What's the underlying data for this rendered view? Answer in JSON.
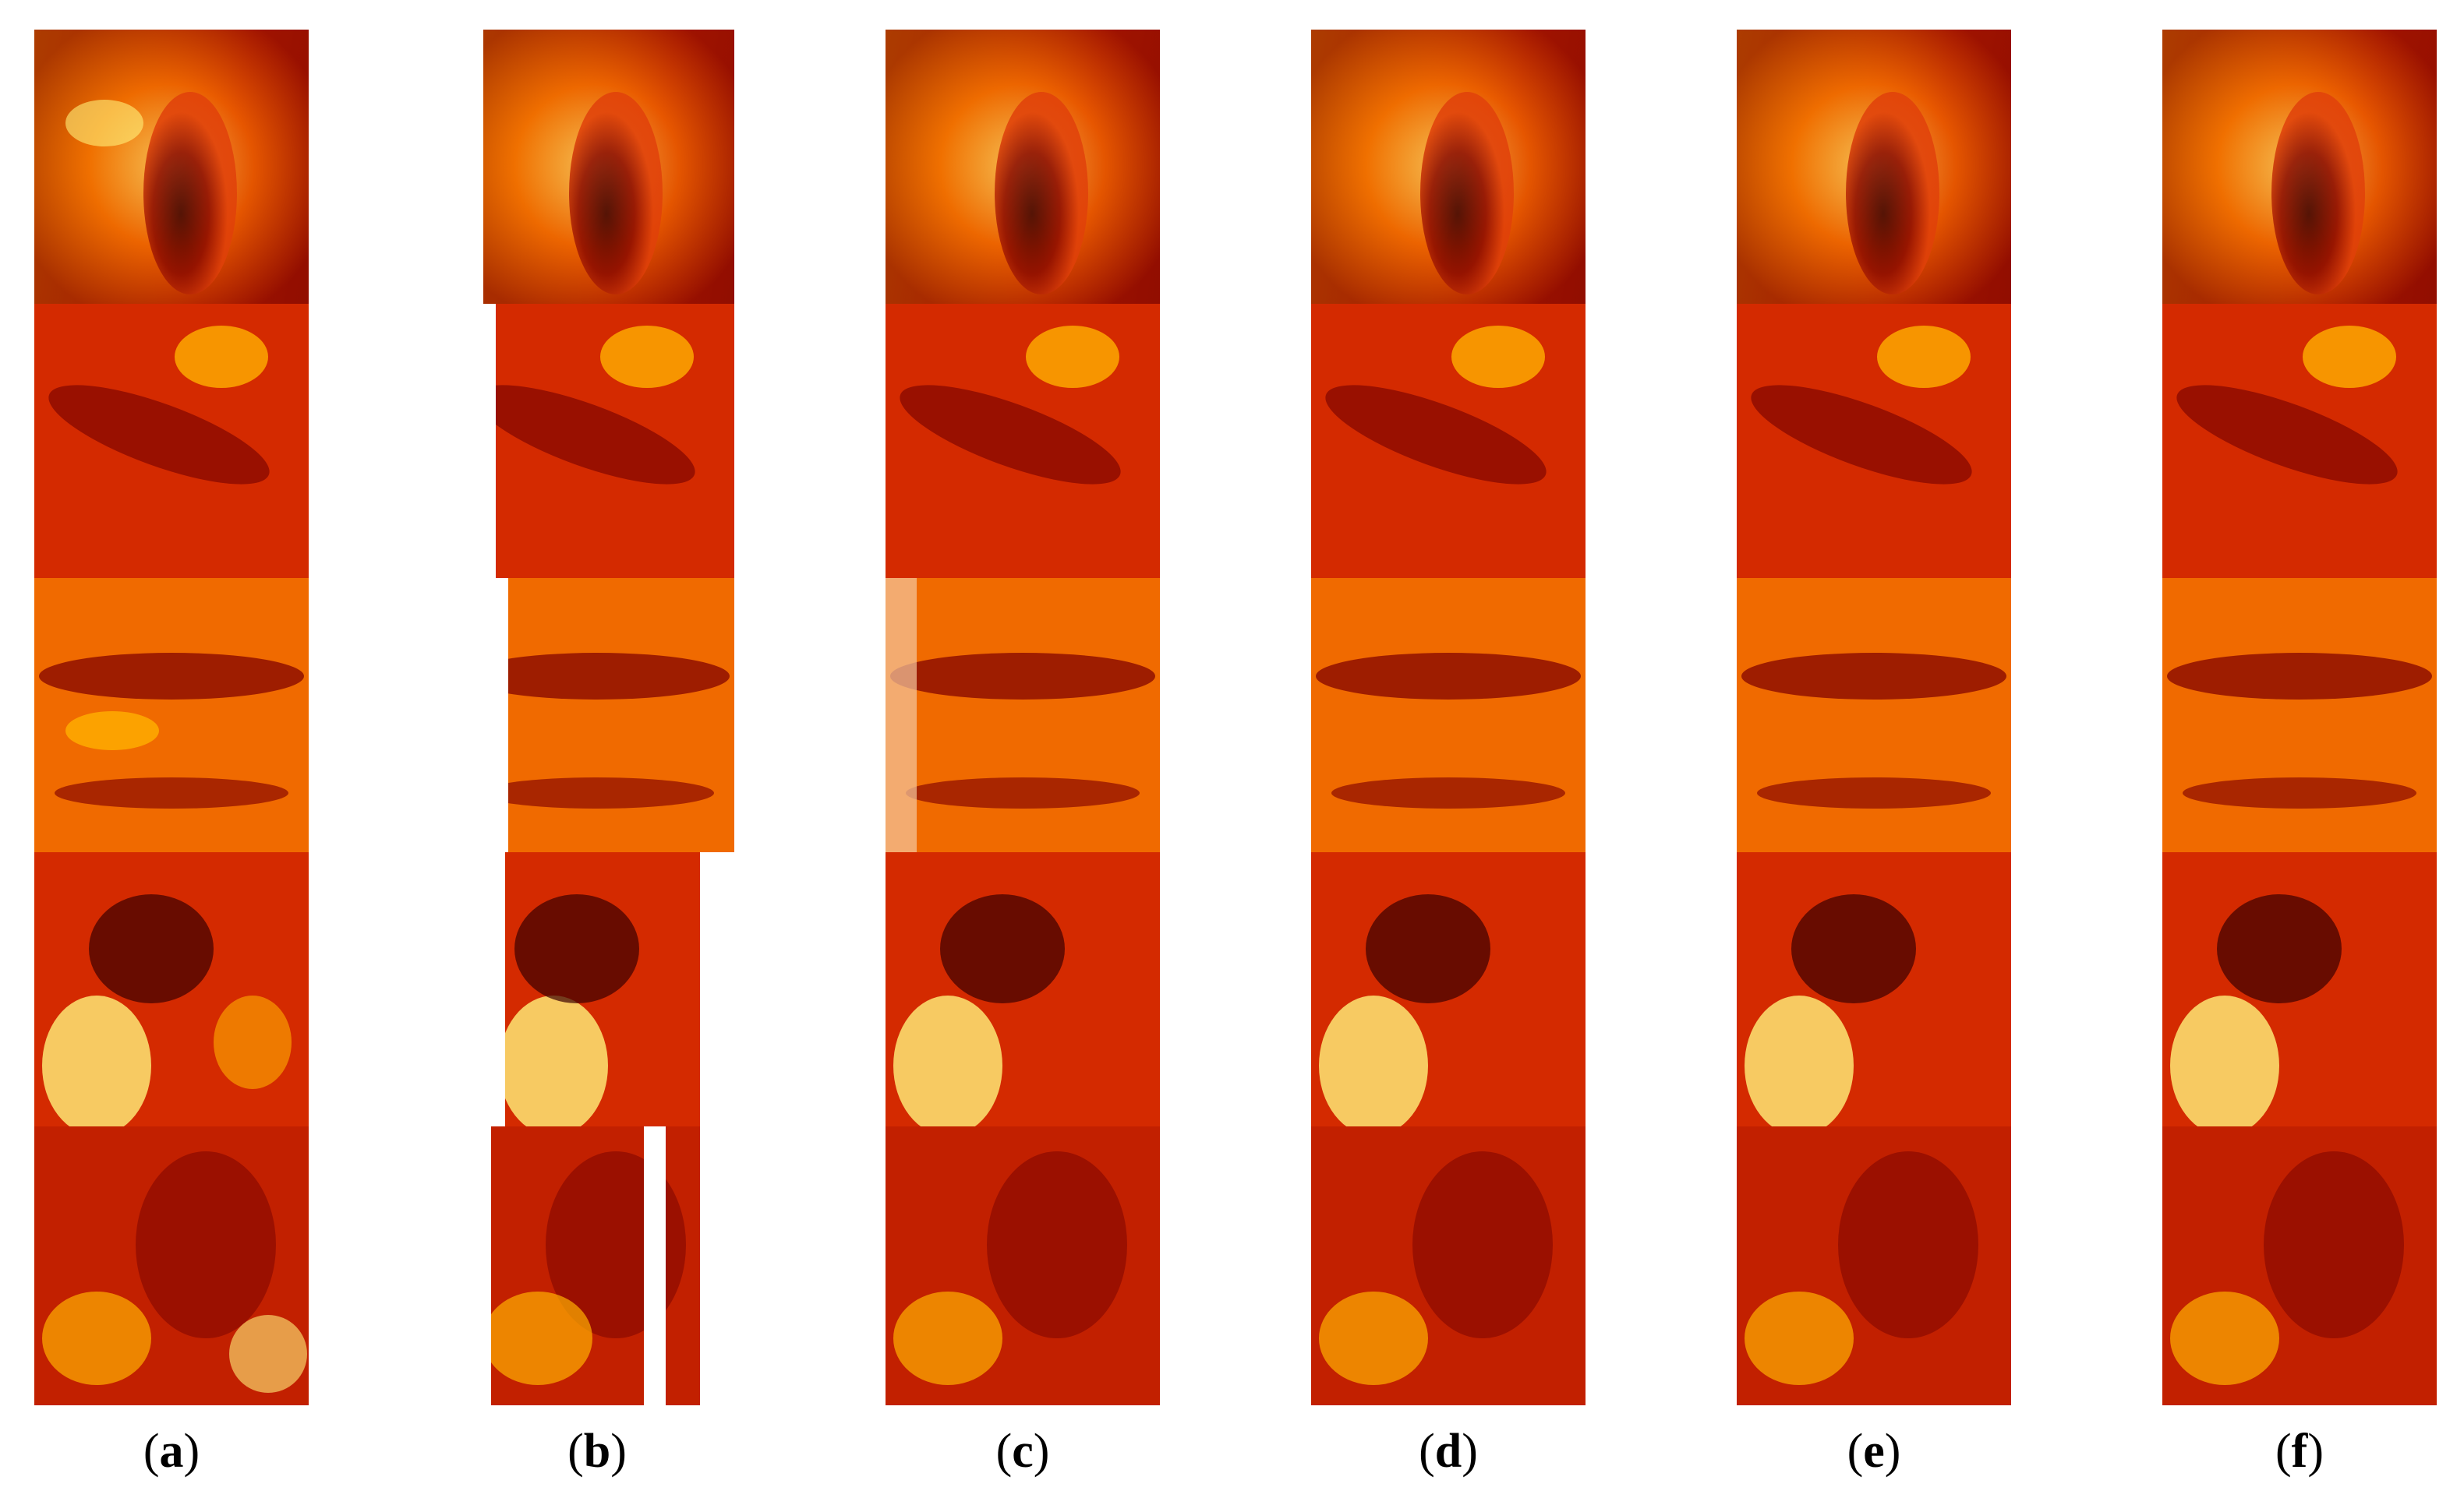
{
  "figure": {
    "panels": [
      {
        "id": "a",
        "caption_open": "(",
        "caption_letter": "a",
        "caption_close": ")"
      },
      {
        "id": "b",
        "caption_open": "(",
        "caption_letter": "b",
        "caption_close": ")"
      },
      {
        "id": "c",
        "caption_open": "(",
        "caption_letter": "c",
        "caption_close": ")"
      },
      {
        "id": "d",
        "caption_open": "(",
        "caption_letter": "d",
        "caption_close": ")"
      },
      {
        "id": "e",
        "caption_open": "(",
        "caption_letter": "e",
        "caption_close": ")"
      },
      {
        "id": "f",
        "caption_open": "(",
        "caption_letter": "f",
        "caption_close": ")"
      }
    ],
    "colormap": [
      "#3a0000",
      "#8a0a00",
      "#d42a00",
      "#f06a00",
      "#ffb000",
      "#fff27a"
    ],
    "rows_per_panel": 5,
    "panel_b_missing_regions": "white vertical bands (missing stripes)"
  }
}
